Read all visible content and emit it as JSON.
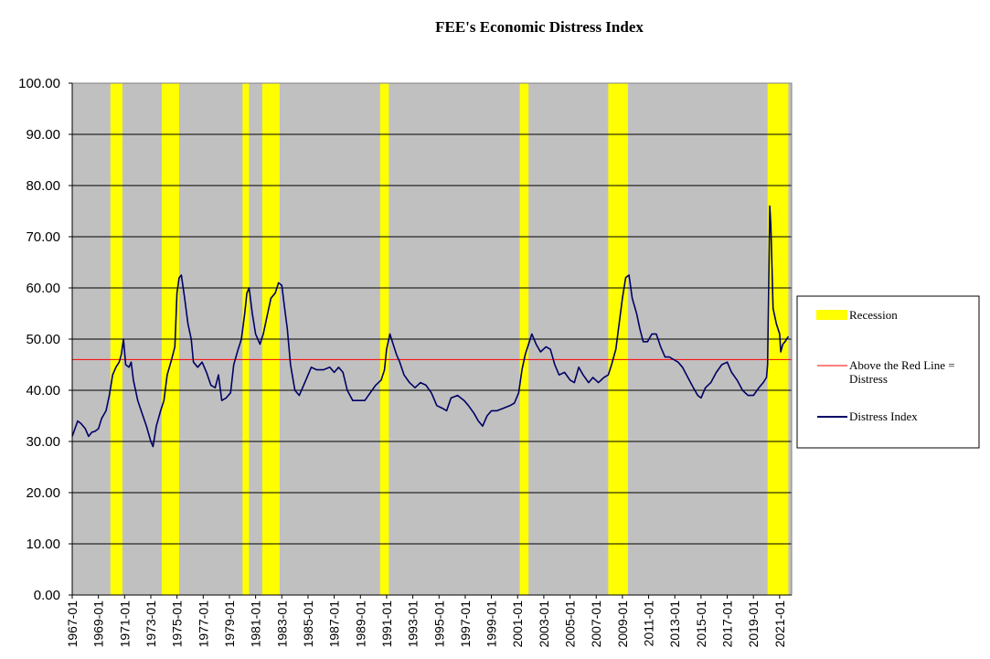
{
  "chart_data": {
    "type": "line",
    "title": "FEE's Economic Distress Index",
    "xlabel": "",
    "ylabel": "",
    "ylim": [
      0,
      100
    ],
    "yticks": [
      "0.00",
      "10.00",
      "20.00",
      "30.00",
      "40.00",
      "50.00",
      "60.00",
      "70.00",
      "80.00",
      "90.00",
      "100.00"
    ],
    "xlim": [
      "1967-01",
      "2021-12"
    ],
    "xticks": [
      "1967-01",
      "1969-01",
      "1971-01",
      "1973-01",
      "1975-01",
      "1977-01",
      "1979-01",
      "1981-01",
      "1983-01",
      "1985-01",
      "1987-01",
      "1989-01",
      "1991-01",
      "1993-01",
      "1995-01",
      "1997-01",
      "1999-01",
      "2001-01",
      "2003-01",
      "2005-01",
      "2007-01",
      "2009-01",
      "2011-01",
      "2013-01",
      "2015-01",
      "2017-01",
      "2019-01",
      "2021-01"
    ],
    "grid": "horizontal",
    "legend_position": "right",
    "plot_background": "#c0c0c0",
    "recessions": [
      {
        "start": "1969-12",
        "end": "1970-11"
      },
      {
        "start": "1973-11",
        "end": "1975-03"
      },
      {
        "start": "1980-01",
        "end": "1980-07"
      },
      {
        "start": "1981-07",
        "end": "1982-11"
      },
      {
        "start": "1990-07",
        "end": "1991-03"
      },
      {
        "start": "2001-03",
        "end": "2001-11"
      },
      {
        "start": "2007-12",
        "end": "2009-06"
      },
      {
        "start": "2020-02",
        "end": "2020-04"
      }
    ],
    "recession_shading_end": "2021-09",
    "threshold": {
      "value": 46,
      "color": "#ff0000"
    },
    "series": [
      {
        "name": "Distress Index",
        "color": "#000066",
        "points": [
          [
            "1967-01",
            31
          ],
          [
            "1967-06",
            34
          ],
          [
            "1967-09",
            33.5
          ],
          [
            "1968-01",
            32.5
          ],
          [
            "1968-04",
            31
          ],
          [
            "1968-07",
            31.8
          ],
          [
            "1968-10",
            32
          ],
          [
            "1969-01",
            32.5
          ],
          [
            "1969-04",
            34.5
          ],
          [
            "1969-08",
            36
          ],
          [
            "1969-11",
            39
          ],
          [
            "1970-02",
            43
          ],
          [
            "1970-05",
            44.5
          ],
          [
            "1970-08",
            45.5
          ],
          [
            "1970-10",
            47
          ],
          [
            "1970-12",
            50
          ],
          [
            "1971-02",
            45
          ],
          [
            "1971-05",
            44.5
          ],
          [
            "1971-07",
            45.5
          ],
          [
            "1971-09",
            42
          ],
          [
            "1972-01",
            38
          ],
          [
            "1972-05",
            35.5
          ],
          [
            "1972-09",
            33
          ],
          [
            "1973-01",
            30
          ],
          [
            "1973-03",
            29
          ],
          [
            "1973-06",
            33
          ],
          [
            "1973-10",
            36
          ],
          [
            "1974-01",
            38
          ],
          [
            "1974-04",
            43
          ],
          [
            "1974-08",
            46
          ],
          [
            "1974-11",
            48.5
          ],
          [
            "1975-01",
            59
          ],
          [
            "1975-03",
            62
          ],
          [
            "1975-05",
            62.5
          ],
          [
            "1975-08",
            58
          ],
          [
            "1975-11",
            53
          ],
          [
            "1976-02",
            50
          ],
          [
            "1976-04",
            45.5
          ],
          [
            "1976-08",
            44.5
          ],
          [
            "1976-12",
            45.5
          ],
          [
            "1977-04",
            43.5
          ],
          [
            "1977-08",
            41
          ],
          [
            "1977-12",
            40.5
          ],
          [
            "1978-03",
            43
          ],
          [
            "1978-06",
            38
          ],
          [
            "1978-10",
            38.5
          ],
          [
            "1979-02",
            39.5
          ],
          [
            "1979-05",
            45
          ],
          [
            "1979-09",
            48
          ],
          [
            "1979-12",
            50
          ],
          [
            "1980-03",
            55
          ],
          [
            "1980-05",
            59
          ],
          [
            "1980-07",
            60
          ],
          [
            "1980-10",
            55
          ],
          [
            "1981-01",
            51
          ],
          [
            "1981-05",
            49
          ],
          [
            "1981-08",
            51
          ],
          [
            "1981-12",
            55
          ],
          [
            "1982-03",
            58
          ],
          [
            "1982-07",
            59
          ],
          [
            "1982-10",
            61
          ],
          [
            "1983-01",
            60.5
          ],
          [
            "1983-03",
            57
          ],
          [
            "1983-06",
            52
          ],
          [
            "1983-09",
            45
          ],
          [
            "1984-01",
            40
          ],
          [
            "1984-05",
            39
          ],
          [
            "1984-09",
            41
          ],
          [
            "1985-01",
            43
          ],
          [
            "1985-04",
            44.5
          ],
          [
            "1985-09",
            44
          ],
          [
            "1986-03",
            44
          ],
          [
            "1986-09",
            44.5
          ],
          [
            "1987-01",
            43.5
          ],
          [
            "1987-05",
            44.5
          ],
          [
            "1987-09",
            43.5
          ],
          [
            "1988-01",
            40
          ],
          [
            "1988-06",
            38
          ],
          [
            "1988-12",
            38
          ],
          [
            "1989-05",
            38
          ],
          [
            "1989-10",
            39.5
          ],
          [
            "1990-03",
            41
          ],
          [
            "1990-08",
            42
          ],
          [
            "1990-11",
            44
          ],
          [
            "1991-01",
            48
          ],
          [
            "1991-04",
            51
          ],
          [
            "1991-07",
            49
          ],
          [
            "1991-10",
            47
          ],
          [
            "1992-01",
            45.5
          ],
          [
            "1992-05",
            43
          ],
          [
            "1992-10",
            41.5
          ],
          [
            "1993-03",
            40.5
          ],
          [
            "1993-08",
            41.5
          ],
          [
            "1994-01",
            41
          ],
          [
            "1994-06",
            39.5
          ],
          [
            "1994-11",
            37
          ],
          [
            "1995-04",
            36.5
          ],
          [
            "1995-08",
            36
          ],
          [
            "1995-12",
            38.5
          ],
          [
            "1996-06",
            39
          ],
          [
            "1996-12",
            38
          ],
          [
            "1997-04",
            37
          ],
          [
            "1997-09",
            35.5
          ],
          [
            "1998-01",
            34
          ],
          [
            "1998-05",
            33
          ],
          [
            "1998-09",
            35
          ],
          [
            "1999-01",
            36
          ],
          [
            "1999-06",
            36
          ],
          [
            "1999-12",
            36.5
          ],
          [
            "2000-06",
            37
          ],
          [
            "2000-10",
            37.5
          ],
          [
            "2001-02",
            39.5
          ],
          [
            "2001-05",
            44
          ],
          [
            "2001-08",
            47
          ],
          [
            "2001-11",
            49
          ],
          [
            "2002-02",
            51
          ],
          [
            "2002-06",
            49
          ],
          [
            "2002-10",
            47.5
          ],
          [
            "2003-03",
            48.5
          ],
          [
            "2003-07",
            48
          ],
          [
            "2003-11",
            45
          ],
          [
            "2004-03",
            43
          ],
          [
            "2004-08",
            43.5
          ],
          [
            "2005-01",
            42
          ],
          [
            "2005-05",
            41.5
          ],
          [
            "2005-09",
            44.5
          ],
          [
            "2006-01",
            43
          ],
          [
            "2006-06",
            41.5
          ],
          [
            "2006-10",
            42.5
          ],
          [
            "2007-03",
            41.5
          ],
          [
            "2007-08",
            42.5
          ],
          [
            "2007-12",
            43
          ],
          [
            "2008-03",
            45
          ],
          [
            "2008-07",
            48
          ],
          [
            "2008-10",
            53
          ],
          [
            "2009-01",
            58
          ],
          [
            "2009-04",
            62
          ],
          [
            "2009-07",
            62.5
          ],
          [
            "2009-10",
            58
          ],
          [
            "2010-02",
            55
          ],
          [
            "2010-05",
            52
          ],
          [
            "2010-08",
            49.5
          ],
          [
            "2010-12",
            49.5
          ],
          [
            "2011-04",
            51
          ],
          [
            "2011-08",
            51
          ],
          [
            "2011-12",
            48.5
          ],
          [
            "2012-04",
            46.5
          ],
          [
            "2012-08",
            46.5
          ],
          [
            "2012-12",
            46
          ],
          [
            "2013-04",
            45.5
          ],
          [
            "2013-08",
            44.5
          ],
          [
            "2014-01",
            42.5
          ],
          [
            "2014-06",
            40.5
          ],
          [
            "2014-10",
            39
          ],
          [
            "2015-01",
            38.5
          ],
          [
            "2015-05",
            40.5
          ],
          [
            "2015-10",
            41.5
          ],
          [
            "2016-03",
            43.5
          ],
          [
            "2016-08",
            45
          ],
          [
            "2017-01",
            45.5
          ],
          [
            "2017-05",
            43.5
          ],
          [
            "2017-10",
            42
          ],
          [
            "2018-03",
            40
          ],
          [
            "2018-08",
            39
          ],
          [
            "2019-01",
            39
          ],
          [
            "2019-06",
            40.5
          ],
          [
            "2019-10",
            41.5
          ],
          [
            "2020-01",
            42.5
          ],
          [
            "2020-02",
            45
          ],
          [
            "2020-04",
            76
          ],
          [
            "2020-05",
            72
          ],
          [
            "2020-07",
            56
          ],
          [
            "2020-10",
            53
          ],
          [
            "2021-01",
            51
          ],
          [
            "2021-02",
            47.5
          ],
          [
            "2021-04",
            49
          ],
          [
            "2021-06",
            49.5
          ],
          [
            "2021-09",
            50.5
          ]
        ]
      }
    ],
    "legend": [
      {
        "key": "recession",
        "label": "Recession",
        "color": "#ffff00"
      },
      {
        "key": "redline",
        "label": "Above the Red Line = Distress",
        "label_lines": [
          "Above the Red Line =",
          "Distress"
        ],
        "color": "#ff0000"
      },
      {
        "key": "series",
        "label": "Distress Index",
        "color": "#000066"
      }
    ]
  }
}
